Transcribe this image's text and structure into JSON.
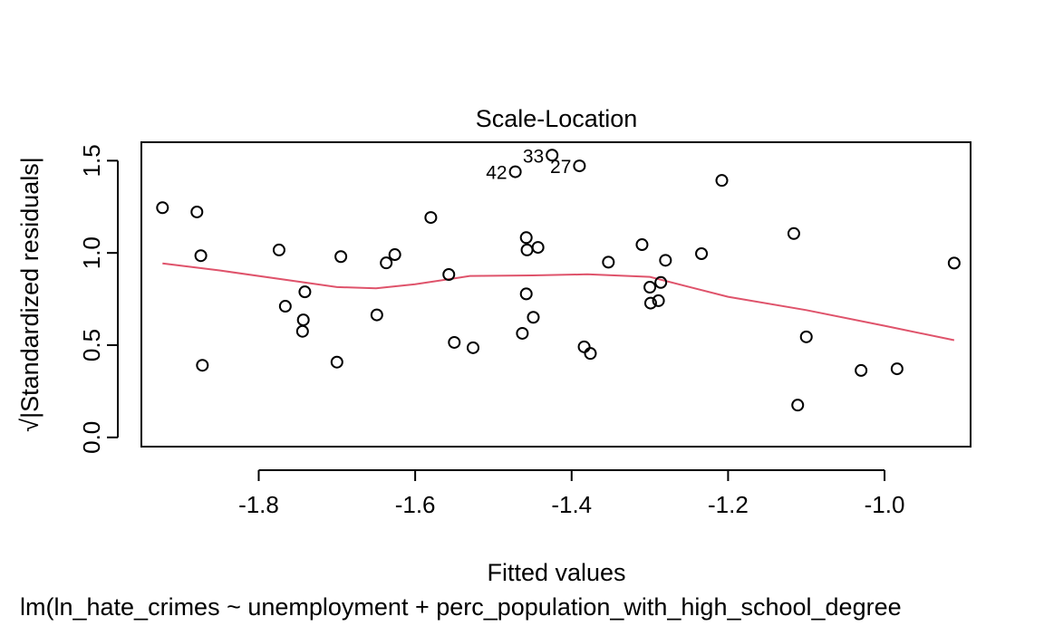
{
  "chart_data": {
    "type": "scatter",
    "title": "Scale-Location",
    "xlabel": "Fitted values",
    "ylabel": "√|Standardized residuals|",
    "subtitle": "lm(ln_hate_crimes ~ unemployment + perc_population_with_high_school_degree",
    "xlim": [
      -1.95,
      -0.89
    ],
    "ylim": [
      -0.05,
      1.6
    ],
    "x_ticks": [
      -1.8,
      -1.6,
      -1.4,
      -1.2,
      -1.0
    ],
    "x_tick_labels": [
      "-1.8",
      "-1.6",
      "-1.4",
      "-1.2",
      "-1.0"
    ],
    "y_ticks": [
      0.0,
      0.5,
      1.0,
      1.5
    ],
    "y_tick_labels": [
      "0.0",
      "0.5",
      "1.0",
      "1.5"
    ],
    "grid": false,
    "series": [
      {
        "points": [
          {
            "x": -1.923,
            "y": 1.245
          },
          {
            "x": -1.879,
            "y": 1.222
          },
          {
            "x": -1.874,
            "y": 0.985
          },
          {
            "x": -1.872,
            "y": 0.391
          },
          {
            "x": -1.774,
            "y": 1.016
          },
          {
            "x": -1.766,
            "y": 0.711
          },
          {
            "x": -1.741,
            "y": 0.789
          },
          {
            "x": -1.743,
            "y": 0.637
          },
          {
            "x": -1.744,
            "y": 0.575
          },
          {
            "x": -1.7,
            "y": 0.408
          },
          {
            "x": -1.695,
            "y": 0.98
          },
          {
            "x": -1.649,
            "y": 0.664
          },
          {
            "x": -1.637,
            "y": 0.946
          },
          {
            "x": -1.626,
            "y": 0.991
          },
          {
            "x": -1.58,
            "y": 1.192
          },
          {
            "x": -1.557,
            "y": 0.883
          },
          {
            "x": -1.55,
            "y": 0.515
          },
          {
            "x": -1.526,
            "y": 0.486
          },
          {
            "x": -1.472,
            "y": 1.44,
            "label": "42"
          },
          {
            "x": -1.463,
            "y": 0.564
          },
          {
            "x": -1.458,
            "y": 1.083
          },
          {
            "x": -1.457,
            "y": 1.016
          },
          {
            "x": -1.458,
            "y": 0.778
          },
          {
            "x": -1.449,
            "y": 0.651
          },
          {
            "x": -1.443,
            "y": 1.03
          },
          {
            "x": -1.425,
            "y": 1.53,
            "label": "33"
          },
          {
            "x": -1.39,
            "y": 1.472,
            "label": "27"
          },
          {
            "x": -1.384,
            "y": 0.491
          },
          {
            "x": -1.376,
            "y": 0.455
          },
          {
            "x": -1.353,
            "y": 0.95
          },
          {
            "x": -1.31,
            "y": 1.045
          },
          {
            "x": -1.3,
            "y": 0.814
          },
          {
            "x": -1.299,
            "y": 0.728
          },
          {
            "x": -1.289,
            "y": 0.741
          },
          {
            "x": -1.286,
            "y": 0.84
          },
          {
            "x": -1.28,
            "y": 0.96
          },
          {
            "x": -1.234,
            "y": 0.996
          },
          {
            "x": -1.208,
            "y": 1.393
          },
          {
            "x": -1.116,
            "y": 1.105
          },
          {
            "x": -1.111,
            "y": 0.175
          },
          {
            "x": -1.1,
            "y": 0.545
          },
          {
            "x": -1.03,
            "y": 0.363
          },
          {
            "x": -0.984,
            "y": 0.372
          },
          {
            "x": -0.911,
            "y": 0.945
          }
        ]
      }
    ],
    "smooth_line": {
      "color": "#DF536B",
      "x": [
        -1.923,
        -1.85,
        -1.75,
        -1.7,
        -1.65,
        -1.6,
        -1.53,
        -1.45,
        -1.38,
        -1.3,
        -1.2,
        -1.1,
        -1.0,
        -0.911
      ],
      "y": [
        0.943,
        0.905,
        0.845,
        0.815,
        0.808,
        0.83,
        0.875,
        0.878,
        0.884,
        0.87,
        0.762,
        0.69,
        0.605,
        0.527
      ]
    },
    "point_color": "#000000"
  }
}
